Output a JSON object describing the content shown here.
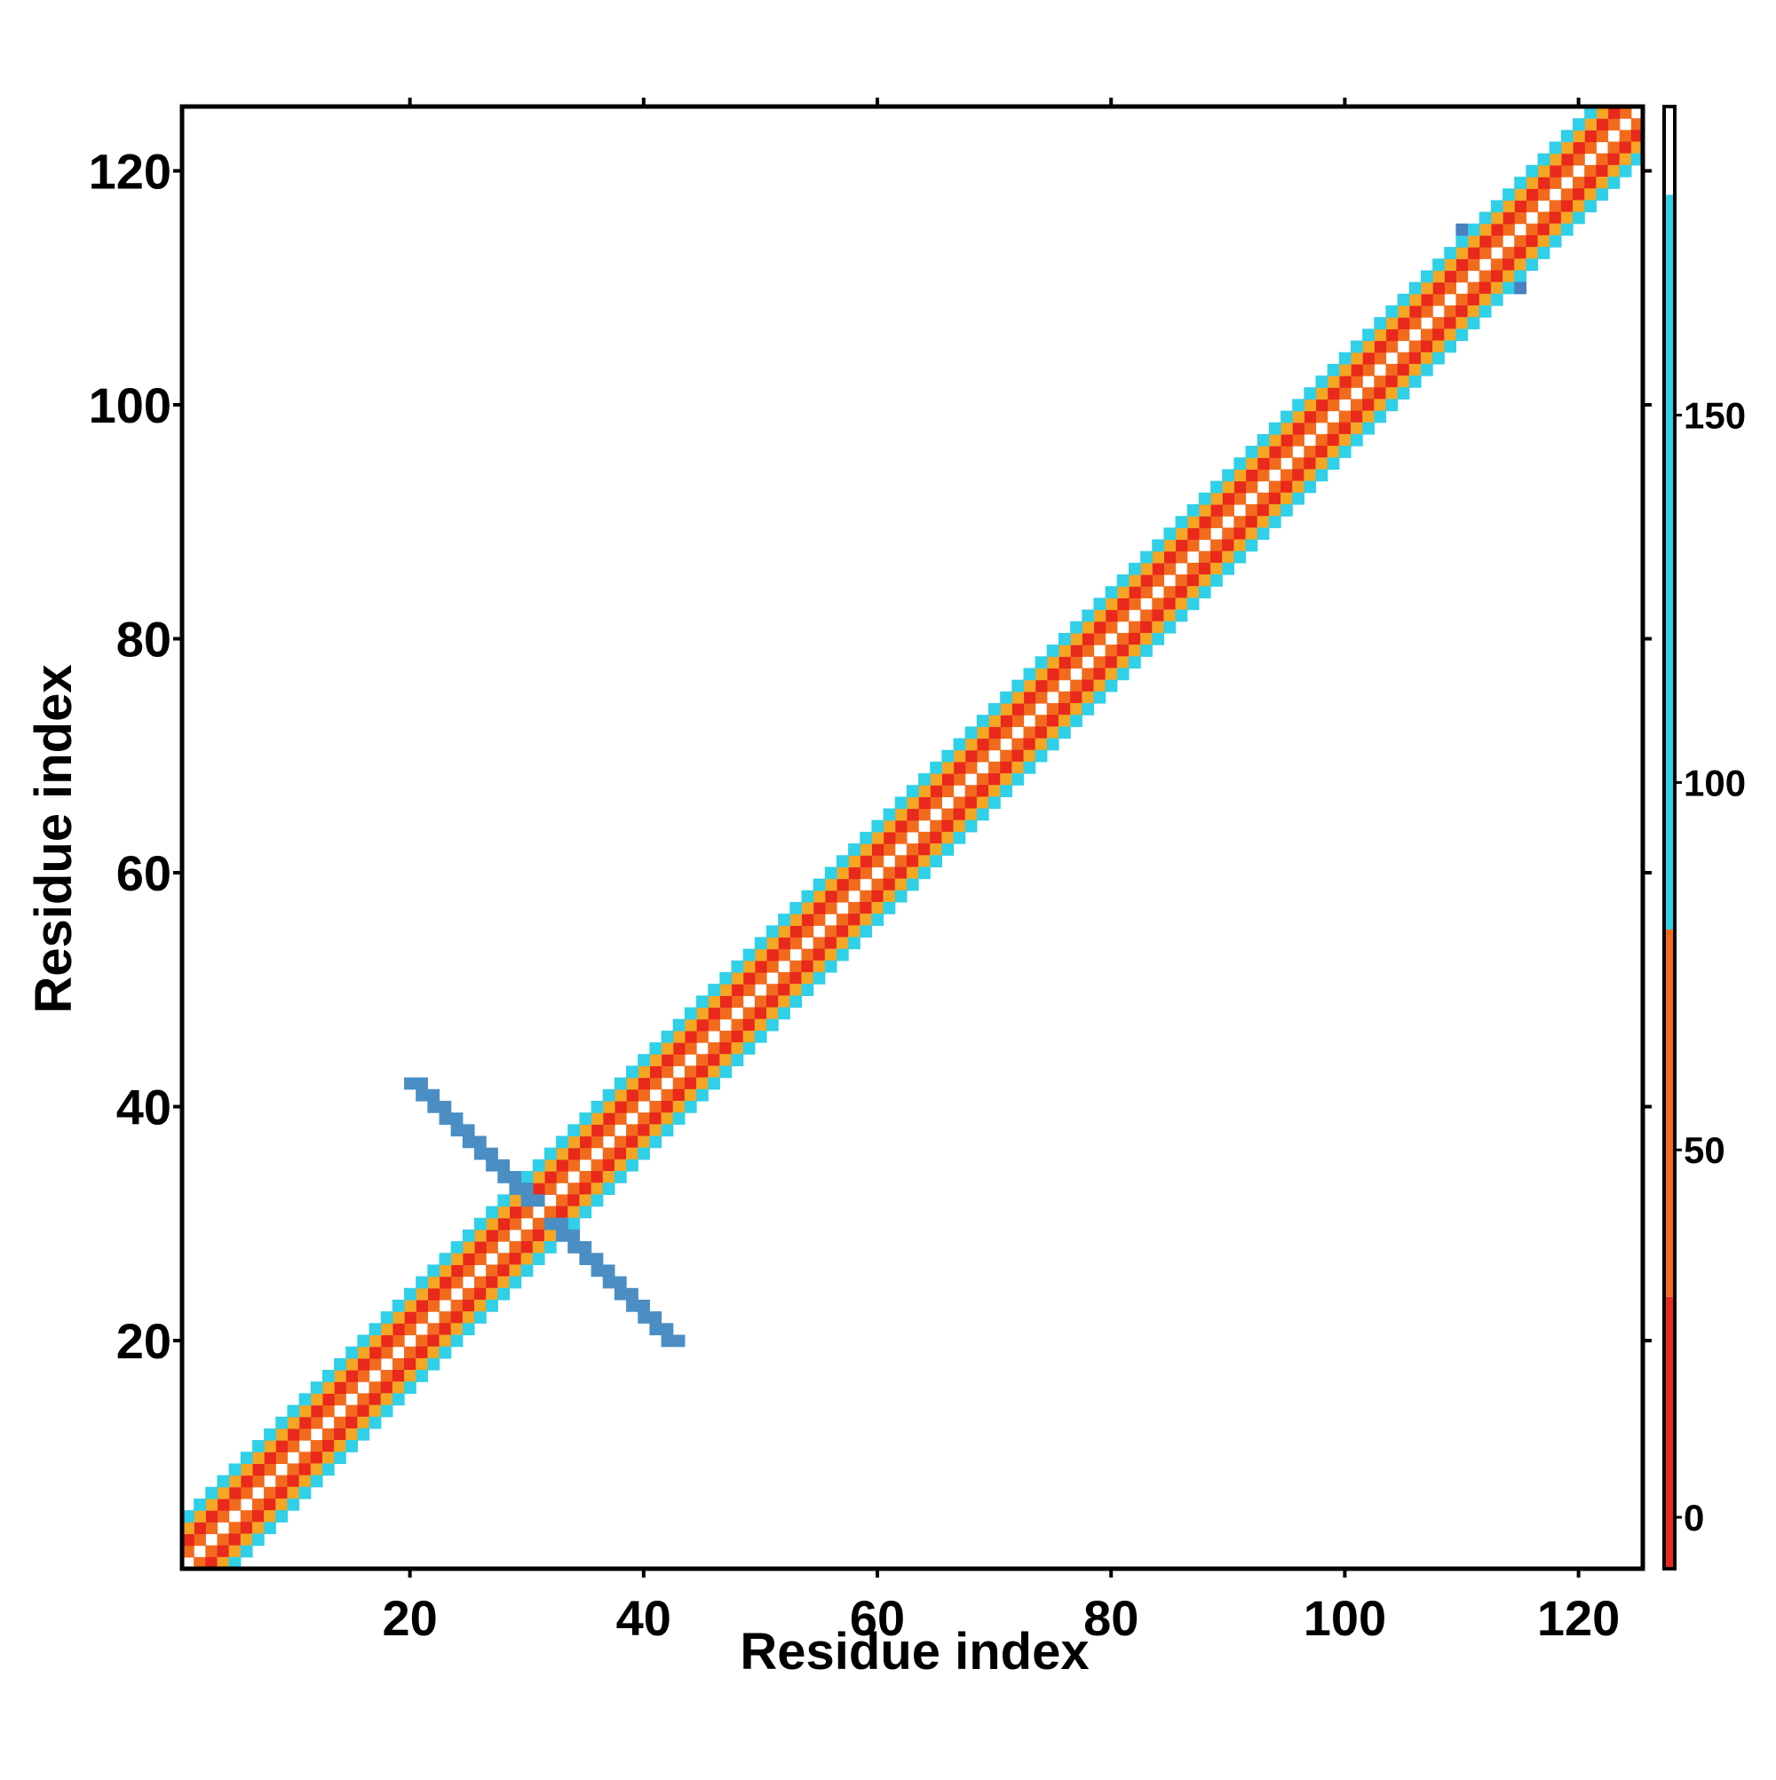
{
  "chart_data": {
    "type": "heatmap",
    "title": "",
    "xlabel": "Residue index",
    "ylabel": "Residue index",
    "xlim": [
      0.5,
      125.5
    ],
    "ylim": [
      0.5,
      125.5
    ],
    "x_ticks": [
      20,
      40,
      60,
      80,
      100,
      120
    ],
    "y_ticks": [
      20,
      40,
      60,
      80,
      100,
      120
    ],
    "colorbar": {
      "range": [
        -7,
        192
      ],
      "ticks": [
        0,
        50,
        100,
        150
      ],
      "segments": [
        {
          "from": -7,
          "to": 30,
          "color": "#e8291c"
        },
        {
          "from": 30,
          "to": 80,
          "color": "#f26b1d"
        },
        {
          "from": 80,
          "to": 180,
          "color": "#2fd0e8"
        },
        {
          "from": 180,
          "to": 192,
          "color": "#ffffff"
        }
      ]
    },
    "series": [
      {
        "band": "diagonal",
        "offset": 0,
        "value": 190,
        "color": "#ffffff"
      },
      {
        "band": "diagonal",
        "offset": 1,
        "value": 40,
        "color": "#f26b1d"
      },
      {
        "band": "diagonal",
        "offset": 2,
        "value": 10,
        "color": "#e8291c"
      },
      {
        "band": "diagonal",
        "offset": 3,
        "value": 60,
        "color": "#f5a623"
      },
      {
        "band": "diagonal",
        "offset": 4,
        "value": 110,
        "color": "#2fd0e8"
      },
      {
        "band": "antidiagonal",
        "range": [
          20,
          42
        ],
        "value": 160,
        "color": "#4a8ec4"
      },
      {
        "band": "block",
        "range": [
          110,
          115
        ],
        "value": 165,
        "color": "#4a7fc1"
      }
    ]
  }
}
